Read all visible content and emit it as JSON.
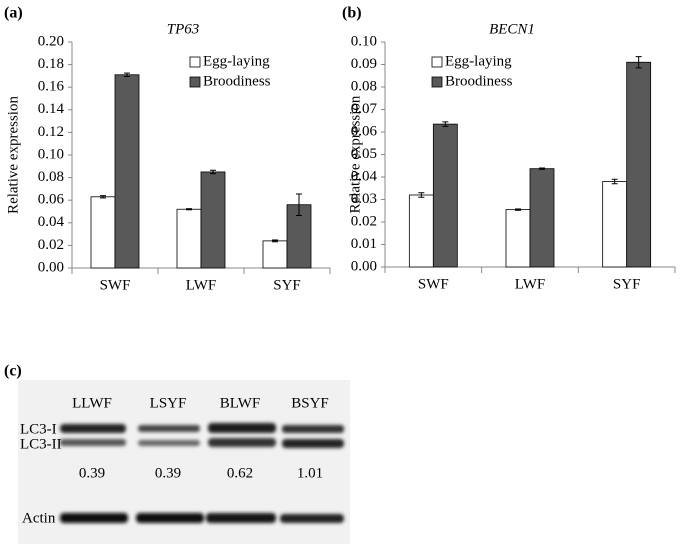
{
  "chart_data": [
    {
      "type": "bar",
      "label": "(a)",
      "title": "TP63",
      "y_label": "Relative expression",
      "categories": [
        "SWF",
        "LWF",
        "SYF"
      ],
      "series": [
        {
          "name": "Egg-laying",
          "color": "#ffffff",
          "values": [
            0.063,
            0.052,
            0.024
          ],
          "errors": [
            0.001,
            0.0005,
            0.0008
          ]
        },
        {
          "name": "Broodiness",
          "color": "#595959",
          "values": [
            0.171,
            0.085,
            0.056
          ],
          "errors": [
            0.0015,
            0.0015,
            0.0095
          ]
        }
      ],
      "ylim": [
        0,
        0.2
      ],
      "yticks": [
        {
          "value": 0,
          "label": "0.00"
        },
        {
          "value": 0.02,
          "label": "0.02"
        },
        {
          "value": 0.04,
          "label": "0.04"
        },
        {
          "value": 0.06,
          "label": "0.06"
        },
        {
          "value": 0.08,
          "label": "0.08"
        },
        {
          "value": 0.1,
          "label": "0.10"
        },
        {
          "value": 0.12,
          "label": "0.12"
        },
        {
          "value": 0.14,
          "label": "0.14"
        },
        {
          "value": 0.16,
          "label": "0.16"
        },
        {
          "value": 0.18,
          "label": "0.18"
        },
        {
          "value": 0.2,
          "label": "0.20"
        }
      ],
      "legend": "upper right",
      "grid": false
    },
    {
      "type": "bar",
      "label": "(b)",
      "title": "BECN1",
      "y_label": "Relative expression",
      "categories": [
        "SWF",
        "LWF",
        "SYF"
      ],
      "series": [
        {
          "name": "Egg-laying",
          "color": "#ffffff",
          "values": [
            0.032,
            0.0255,
            0.038
          ],
          "errors": [
            0.001,
            0.0003,
            0.001
          ]
        },
        {
          "name": "Broodiness",
          "color": "#595959",
          "values": [
            0.0635,
            0.0437,
            0.091
          ],
          "errors": [
            0.001,
            0.0003,
            0.0025
          ]
        }
      ],
      "ylim": [
        0,
        0.1
      ],
      "yticks": [
        {
          "value": 0,
          "label": "0.00"
        },
        {
          "value": 0.01,
          "label": "0.01"
        },
        {
          "value": 0.02,
          "label": "0.02"
        },
        {
          "value": 0.03,
          "label": "0.03"
        },
        {
          "value": 0.04,
          "label": "0.04"
        },
        {
          "value": 0.05,
          "label": "0.05"
        },
        {
          "value": 0.06,
          "label": "0.06"
        },
        {
          "value": 0.07,
          "label": "0.07"
        },
        {
          "value": 0.08,
          "label": "0.08"
        },
        {
          "value": 0.09,
          "label": "0.09"
        },
        {
          "value": 0.1,
          "label": "0.10"
        }
      ],
      "legend": "upper left",
      "grid": false
    }
  ],
  "blot": {
    "label": "(c)",
    "lanes": [
      "LLWF",
      "LSYF",
      "BLWF",
      "BSYF"
    ],
    "bands": [
      "LC3-I",
      "LC3-II"
    ],
    "ratios": [
      0.39,
      0.39,
      0.62,
      1.01
    ],
    "loading": "Actin"
  }
}
